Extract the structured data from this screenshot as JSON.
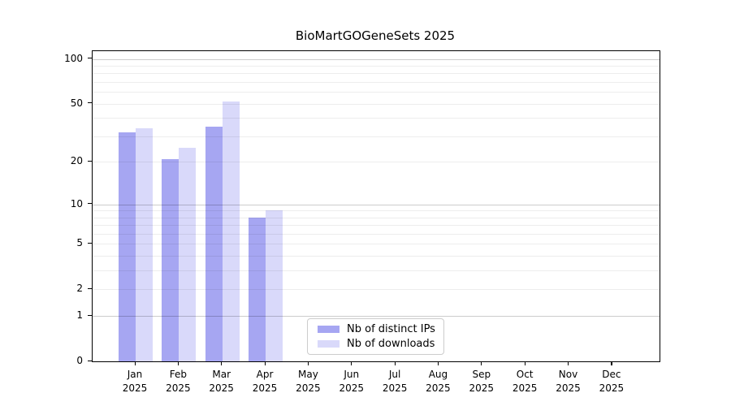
{
  "chart_data": {
    "type": "bar",
    "title": "BioMartGOGeneSets 2025",
    "year_label": "2025",
    "categories": [
      "Jan",
      "Feb",
      "Mar",
      "Apr",
      "May",
      "Jun",
      "Jul",
      "Aug",
      "Sep",
      "Oct",
      "Nov",
      "Dec"
    ],
    "series": [
      {
        "name": "Nb of distinct IPs",
        "color": "#a6a6f2",
        "values": [
          32,
          21,
          35,
          8,
          0,
          0,
          0,
          0,
          0,
          0,
          0,
          0
        ]
      },
      {
        "name": "Nb of downloads",
        "color": "#d9d9fa",
        "values": [
          34,
          25,
          52,
          9,
          0,
          0,
          0,
          0,
          0,
          0,
          0,
          0
        ]
      }
    ],
    "y_axis": {
      "scale": "log10(value+1)",
      "tick_values": [
        0,
        1,
        2,
        5,
        10,
        20,
        50,
        100
      ],
      "major_gridlines": [
        1,
        10,
        100
      ],
      "minor_gridlines": [
        2,
        3,
        4,
        5,
        6,
        7,
        8,
        9,
        20,
        30,
        40,
        50,
        60,
        70,
        80,
        90
      ],
      "ylim": [
        0,
        112
      ]
    },
    "xlabel": "",
    "ylabel": "",
    "grid": true,
    "legend_position": "lower center"
  }
}
